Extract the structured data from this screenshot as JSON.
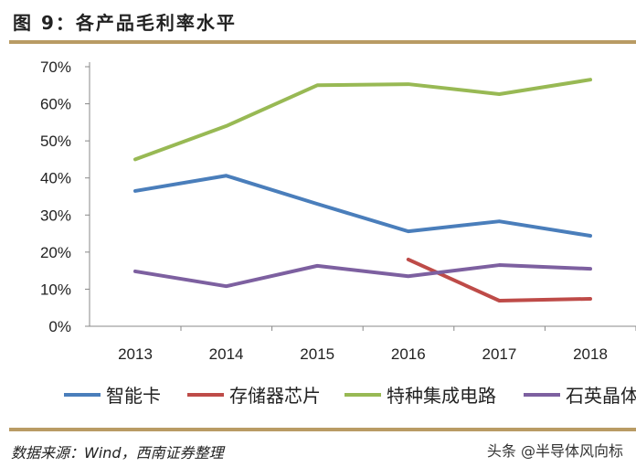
{
  "header": {
    "title": "图 9：各产品毛利率水平"
  },
  "footer": {
    "source": "数据来源：Wind，西南证券整理",
    "watermark": "头条 @半导体风向标"
  },
  "chart_data": {
    "type": "line",
    "title": "",
    "categories": [
      "2013",
      "2014",
      "2015",
      "2016",
      "2017",
      "2018"
    ],
    "ylim": [
      0,
      70
    ],
    "yticks": [
      "0%",
      "10%",
      "20%",
      "30%",
      "40%",
      "50%",
      "60%",
      "70%"
    ],
    "grid": false,
    "legend": "bottom",
    "series": [
      {
        "name": "智能卡",
        "color": "#4a7ebb",
        "values": [
          36.5,
          40.6,
          33,
          25.6,
          28.3,
          24.4
        ]
      },
      {
        "name": "存储器芯片",
        "color": "#be4b48",
        "values": [
          null,
          null,
          null,
          18,
          6.9,
          7.4
        ]
      },
      {
        "name": "特种集成电路",
        "color": "#98b954",
        "values": [
          45,
          54,
          65,
          65.3,
          62.6,
          66.5
        ]
      },
      {
        "name": "石英晶体",
        "color": "#7d60a0",
        "values": [
          14.8,
          10.8,
          16.3,
          13.5,
          16.5,
          15.5
        ]
      }
    ]
  }
}
